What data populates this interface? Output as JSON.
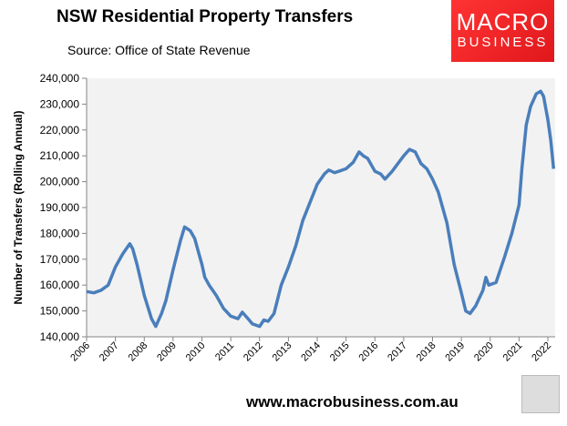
{
  "header": {
    "title": "NSW Residential Property Transfers",
    "subtitle": "Source: Office of State Revenue"
  },
  "logo": {
    "line1": "MACRO",
    "line2": "BUSINESS",
    "color": "#e8191e"
  },
  "footer": {
    "url": "www.macrobusiness.com.au"
  },
  "chart_data": {
    "type": "line",
    "title": "NSW Residential Property Transfers",
    "xlabel": "",
    "ylabel": "Number of Transfers (Rolling Annual)",
    "xlim": [
      2006,
      2022.1
    ],
    "ylim": [
      140000,
      240000
    ],
    "yticks": [
      140000,
      150000,
      160000,
      170000,
      180000,
      190000,
      200000,
      210000,
      220000,
      230000,
      240000
    ],
    "ytick_labels": [
      "140,000",
      "150,000",
      "160,000",
      "170,000",
      "180,000",
      "190,000",
      "200,000",
      "210,000",
      "220,000",
      "230,000",
      "240,000"
    ],
    "xticks": [
      "2006",
      "2007",
      "2008",
      "2009",
      "2010",
      "2011",
      "2012",
      "2013",
      "2014",
      "2015",
      "2016",
      "2017",
      "2018",
      "2019",
      "2020",
      "2021",
      "2022"
    ],
    "grid": false,
    "line_color": "#4a7ebb",
    "series": [
      {
        "name": "Transfers",
        "x": [
          2006.0,
          2006.25,
          2006.5,
          2006.75,
          2007.0,
          2007.25,
          2007.5,
          2007.6,
          2007.75,
          2008.0,
          2008.25,
          2008.4,
          2008.6,
          2008.75,
          2009.0,
          2009.25,
          2009.4,
          2009.6,
          2009.75,
          2010.0,
          2010.1,
          2010.25,
          2010.5,
          2010.75,
          2011.0,
          2011.25,
          2011.4,
          2011.6,
          2011.75,
          2012.0,
          2012.15,
          2012.3,
          2012.5,
          2012.75,
          2013.0,
          2013.25,
          2013.5,
          2013.75,
          2014.0,
          2014.25,
          2014.4,
          2014.6,
          2014.75,
          2015.0,
          2015.25,
          2015.45,
          2015.6,
          2015.75,
          2016.0,
          2016.2,
          2016.35,
          2016.6,
          2016.8,
          2017.0,
          2017.2,
          2017.4,
          2017.6,
          2017.8,
          2018.0,
          2018.2,
          2018.5,
          2018.75,
          2019.0,
          2019.15,
          2019.3,
          2019.5,
          2019.75,
          2019.85,
          2019.95,
          2020.2,
          2020.5,
          2020.75,
          2021.0,
          2021.1,
          2021.25,
          2021.4,
          2021.6,
          2021.75,
          2021.85,
          2022.0,
          2022.1,
          2022.2
        ],
        "values": [
          157500,
          157000,
          158000,
          160000,
          167000,
          172000,
          176000,
          174000,
          168000,
          156000,
          147000,
          144000,
          149000,
          154000,
          166000,
          177000,
          182500,
          181000,
          178000,
          168000,
          163000,
          160000,
          156000,
          151000,
          148000,
          147000,
          149500,
          147000,
          145000,
          144000,
          146500,
          146000,
          149000,
          160000,
          167000,
          175000,
          185000,
          192000,
          199000,
          203000,
          204500,
          203500,
          204000,
          205000,
          207500,
          211500,
          210000,
          209000,
          204000,
          203000,
          201000,
          204000,
          207000,
          210000,
          212500,
          211500,
          207000,
          205000,
          201000,
          196000,
          184000,
          168000,
          157000,
          150000,
          149000,
          152000,
          158000,
          163000,
          160000,
          161000,
          171000,
          180000,
          191000,
          205000,
          222000,
          229000,
          234000,
          235000,
          233000,
          224000,
          216000,
          205000
        ]
      }
    ]
  }
}
